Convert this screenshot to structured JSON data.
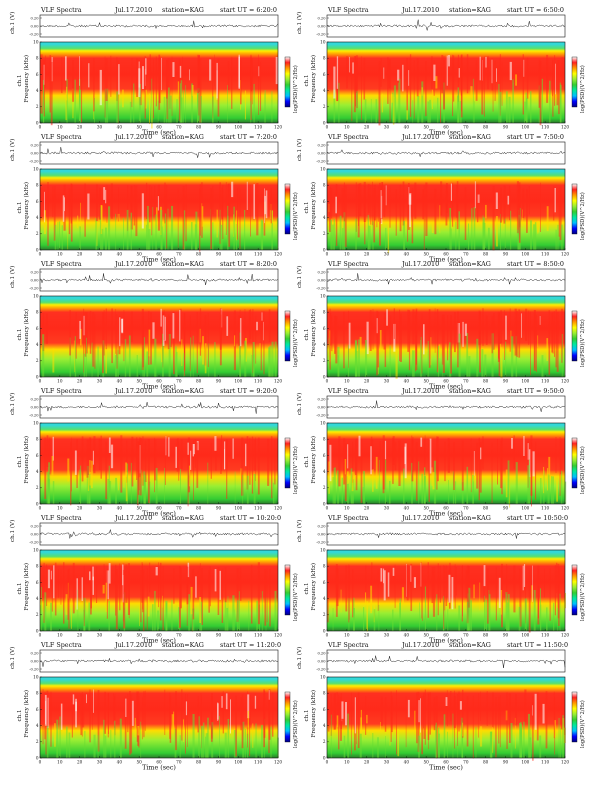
{
  "page": {
    "panels": [
      {
        "header": [
          "VLF Spectra",
          "Jul.17.2010",
          "station=KAG",
          "start UT = 6:20:0"
        ]
      },
      {
        "header": [
          "VLF Spectra",
          "Jul.17.2010",
          "station=KAG",
          "start UT = 6:50:0"
        ]
      },
      {
        "header": [
          "VLF Spectra",
          "Jul.17.2010",
          "station=KAG",
          "start UT = 7:20:0"
        ]
      },
      {
        "header": [
          "VLF Spectra",
          "Jul.17.2010",
          "station=KAG",
          "start UT = 7:50:0"
        ]
      },
      {
        "header": [
          "VLF Spectra",
          "Jul.17.2010",
          "station=KAG",
          "start UT = 8:20:0"
        ]
      },
      {
        "header": [
          "VLF Spectra",
          "Jul.17.2010",
          "station=KAG",
          "start UT = 8:50:0"
        ]
      },
      {
        "header": [
          "VLF Spectra",
          "Jul.17.2010",
          "station=KAG",
          "start UT = 9:20:0"
        ]
      },
      {
        "header": [
          "VLF Spectra",
          "Jul.17.2010",
          "station=KAG",
          "start UT = 9:50:0"
        ]
      },
      {
        "header": [
          "VLF Spectra",
          "Jul.17.2010",
          "station=KAG",
          "start UT = 10:20:0"
        ]
      },
      {
        "header": [
          "VLF Spectra",
          "Jul.17.2010",
          "station=KAG",
          "start UT = 10:50:0"
        ]
      },
      {
        "header": [
          "VLF Spectra",
          "Jul.17.2010",
          "station=KAG",
          "start UT = 11:20:0"
        ]
      },
      {
        "header": [
          "VLF Spectra",
          "Jul.17.2010",
          "station=KAG",
          "start UT = 11:50:0"
        ]
      }
    ]
  },
  "chart_data": {
    "type": "heatmap",
    "count": 12,
    "xlabel": "Time (sec)",
    "ylabel": "Frequency (kHz)",
    "trace_label": "ch.1 (V)",
    "trace_ylabel_side": "ch.1",
    "colorbar_label": "log(PSD)(V^2/Hz)",
    "xlim": [
      0,
      120
    ],
    "xticks": [
      "0",
      "10",
      "20",
      "30",
      "40",
      "50",
      "60",
      "70",
      "80",
      "90",
      "100",
      "110",
      "120"
    ],
    "ylim": [
      0,
      10
    ],
    "yticks": [
      "0",
      "2",
      "4",
      "6",
      "8",
      "10"
    ],
    "trace_ticks": [
      "0.20",
      "0.00",
      "-0.20"
    ],
    "colormap": [
      "#000080",
      "#0000ff",
      "#00bfff",
      "#00e8a0",
      "#33cc33",
      "#99ee33",
      "#ffff00",
      "#ff9900",
      "#ff2020",
      "#ffffff"
    ],
    "colors": {
      "frame": "#111111",
      "trace": "#222222"
    }
  }
}
